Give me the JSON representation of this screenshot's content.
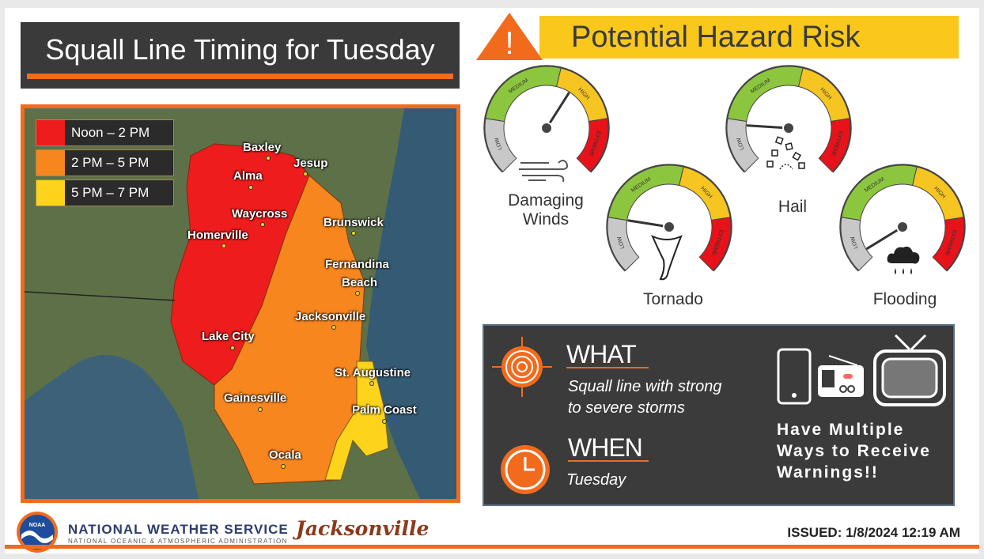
{
  "title": "Squall Line Timing for Tuesday",
  "legend": [
    {
      "label": "Noon – 2 PM",
      "color": "#ee1c1c"
    },
    {
      "label": "2 PM – 5 PM",
      "color": "#f7861e"
    },
    {
      "label": "5 PM – 7 PM",
      "color": "#fdd31b"
    }
  ],
  "cities": {
    "baxley": "Baxley",
    "jesup": "Jesup",
    "alma": "Alma",
    "waycross": "Waycross",
    "homerville": "Homerville",
    "brunswick": "Brunswick",
    "fernandina": "Fernandina",
    "beach": "Beach",
    "jacksonville": "Jacksonville",
    "lake_city": "Lake City",
    "st_augustine": "St. Augustine",
    "gainesville": "Gainesville",
    "palm_coast": "Palm Coast",
    "ocala": "Ocala"
  },
  "hazard_title": "Potential Hazard Risk",
  "hazard_alert_glyph": "!",
  "gauge_ticks": {
    "low": "LOW",
    "medium": "MEDIUM",
    "high": "HIGH",
    "extreme": "EXTREME"
  },
  "gauges": [
    {
      "name": "Damaging Winds",
      "line1": "Damaging",
      "line2": "Winds",
      "level": 0.62,
      "icon": "wind-icon"
    },
    {
      "name": "Tornado",
      "level": 0.2,
      "icon": "tornado-icon"
    },
    {
      "name": "Hail",
      "level": 0.18,
      "icon": "hail-icon"
    },
    {
      "name": "Flooding",
      "level": 0.05,
      "icon": "rain-cloud-icon"
    }
  ],
  "what": {
    "title": "WHAT",
    "line1": "Squall line with strong",
    "line2": "to severe storms"
  },
  "when": {
    "title": "WHEN",
    "text": "Tuesday"
  },
  "warnings": {
    "line1": "Have Multiple",
    "line2": "Ways to Receive",
    "line3": "Warnings!!"
  },
  "footer": {
    "org": "NATIONAL WEATHER SERVICE",
    "sub": "NATIONAL OCEANIC & ATMOSPHERIC ADMINISTRATION",
    "office": "Jacksonville",
    "logo": "NOAA",
    "issued": "ISSUED: 1/8/2024 12:19 AM"
  },
  "colors": {
    "accent": "#f26b1d",
    "yellow": "#f9c81b",
    "dark": "#3a3a3a"
  }
}
